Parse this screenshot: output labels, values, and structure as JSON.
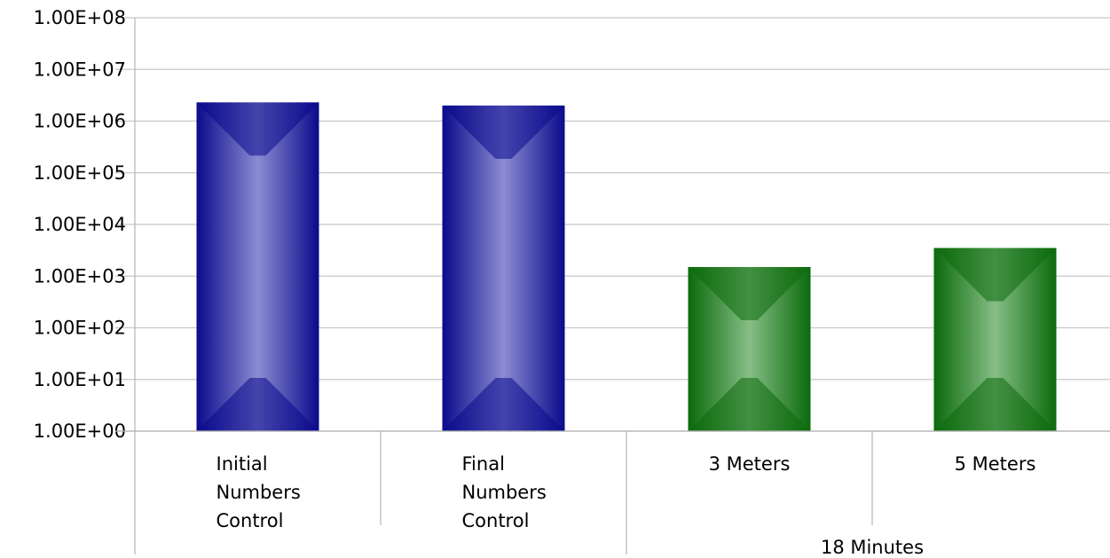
{
  "chart_data": {
    "type": "bar",
    "y_scale": "log",
    "ylim": [
      1,
      100000000
    ],
    "yticks": [
      "1.00E+00",
      "1.00E+01",
      "1.00E+02",
      "1.00E+03",
      "1.00E+04",
      "1.00E+05",
      "1.00E+06",
      "1.00E+07",
      "1.00E+08"
    ],
    "grid": true,
    "categories": [
      [
        "Initial",
        "Numbers",
        "Control"
      ],
      [
        "Final",
        "Numbers",
        "Control"
      ],
      [
        "3 Meters"
      ],
      [
        "5 Meters"
      ]
    ],
    "group_labels": [
      {
        "label": "",
        "span": [
          0,
          0
        ]
      },
      {
        "label": "",
        "span": [
          1,
          1
        ]
      },
      {
        "label": "18 Minutes",
        "span": [
          2,
          3
        ]
      }
    ],
    "values": [
      2300000,
      2000000,
      1500,
      3500
    ],
    "colors": [
      "#0a0a8c",
      "#0a0a8c",
      "#0b6a0b",
      "#0b6a0b"
    ],
    "highlight_colors": [
      "#8c8cd2",
      "#8c8cd2",
      "#86be86",
      "#86be86"
    ]
  }
}
